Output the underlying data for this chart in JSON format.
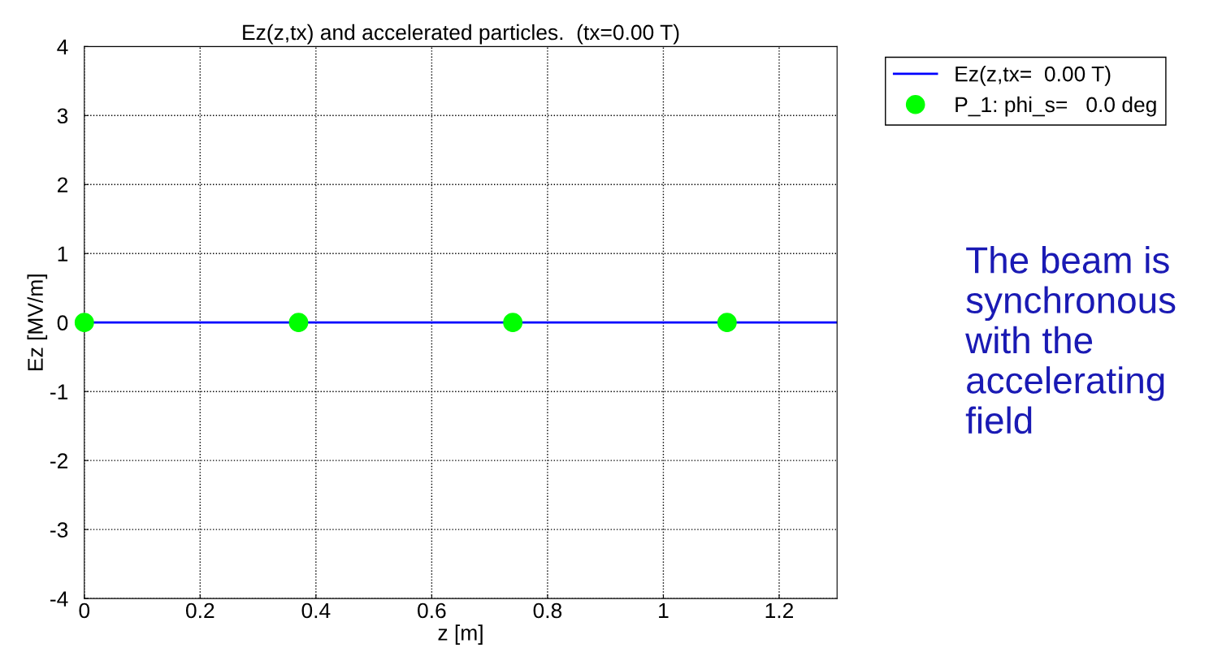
{
  "chart_data": {
    "type": "line",
    "title": "Ez(z,tx) and accelerated particles.  (tx=0.00 T)",
    "xlabel": "z [m]",
    "ylabel": "Ez [MV/m]",
    "series": [
      {
        "name": "Ez(z,tx=  0.00 T)",
        "color": "#0000ff",
        "x": [
          0,
          1.3
        ],
        "values": [
          0,
          0
        ]
      },
      {
        "name": "P_1: phi_s=   0.0 deg",
        "type": "scatter",
        "color": "#00ff00",
        "marker": "circle",
        "x": [
          0,
          0.37,
          0.74,
          1.11
        ],
        "values": [
          0,
          0,
          0,
          0
        ]
      }
    ],
    "xlim": [
      0,
      1.3
    ],
    "xticks": [
      0,
      0.2,
      0.4,
      0.6,
      0.8,
      1,
      1.2
    ],
    "ylim": [
      -4,
      4
    ],
    "yticks": [
      -4,
      -3,
      -2,
      -1,
      0,
      1,
      2,
      3,
      4
    ],
    "grid": true,
    "legend": "top right",
    "annotations": [
      "The beam is synchronous with the accelerating field"
    ]
  }
}
